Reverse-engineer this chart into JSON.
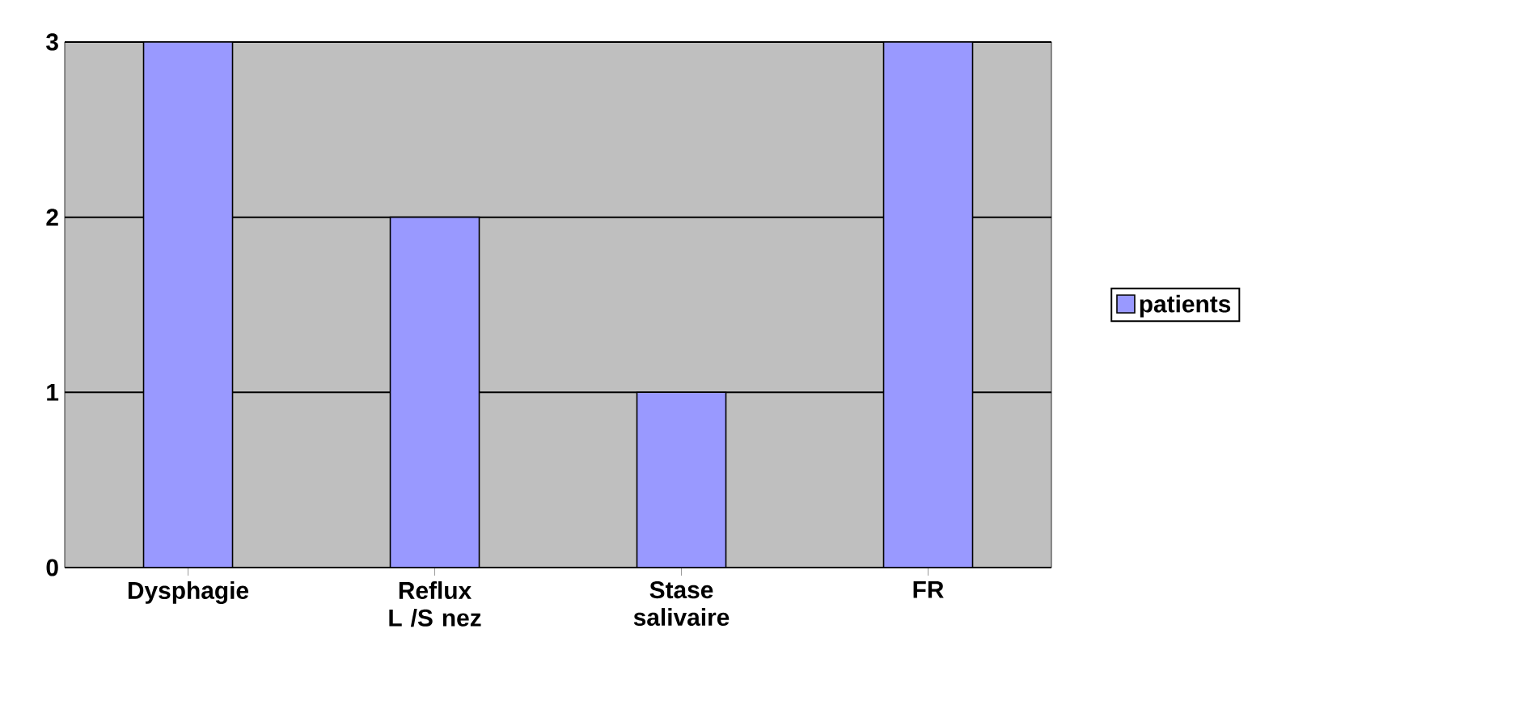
{
  "chart_data": {
    "type": "bar",
    "categories": [
      "Dysphagie",
      "Reflux L /S nez",
      "Stase salivaire",
      "FR"
    ],
    "series": [
      {
        "name": "patients",
        "color": "#9999ff",
        "values": [
          3,
          2,
          1,
          3
        ]
      }
    ],
    "ylim": [
      0,
      3
    ],
    "yticks": [
      0,
      1,
      2,
      3
    ],
    "grid": "y",
    "legend": "right"
  }
}
